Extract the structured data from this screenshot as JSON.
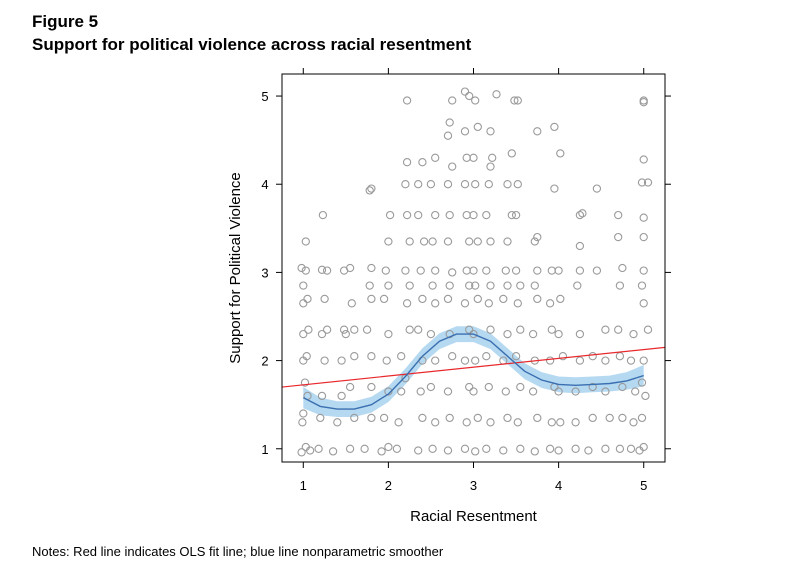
{
  "figure": {
    "number": "Figure 5",
    "title": "Support for political violence across racial resentment",
    "notes": "Notes: Red line indicates OLS fit line; blue line nonparametric smoother"
  },
  "chart_data": {
    "type": "scatter",
    "xlabel": "Racial Resentment",
    "ylabel": "Support for Political Violence",
    "xlim": [
      0.75,
      5.25
    ],
    "ylim": [
      0.85,
      5.25
    ],
    "x_ticks": [
      1,
      2,
      3,
      4,
      5
    ],
    "y_ticks": [
      1,
      2,
      3,
      4,
      5
    ],
    "x_tick_labels": [
      "1",
      "2",
      "3",
      "4",
      "5"
    ],
    "y_tick_labels": [
      "1",
      "2",
      "3",
      "4",
      "5"
    ],
    "grid": false,
    "legend": "none",
    "colors": {
      "points": "#9a9a9a",
      "ols_line": "#e8282c",
      "smoother_line": "#3a6fb0",
      "smoother_band": "#a9d2f0"
    },
    "series": [
      {
        "kind": "jittered_points",
        "points": [
          [
            0.98,
            0.96
          ],
          [
            1.03,
            1.02
          ],
          [
            1.08,
            0.98
          ],
          [
            0.99,
            1.3
          ],
          [
            1.0,
            1.4
          ],
          [
            1.05,
            1.6
          ],
          [
            1.02,
            1.75
          ],
          [
            1.0,
            2.0
          ],
          [
            1.04,
            2.05
          ],
          [
            1.0,
            2.3
          ],
          [
            1.06,
            2.35
          ],
          [
            1.0,
            2.65
          ],
          [
            1.05,
            2.7
          ],
          [
            1.0,
            2.85
          ],
          [
            1.03,
            3.02
          ],
          [
            0.98,
            3.05
          ],
          [
            1.03,
            3.35
          ],
          [
            1.18,
            1.0
          ],
          [
            1.2,
            1.35
          ],
          [
            1.22,
            1.6
          ],
          [
            1.25,
            2.0
          ],
          [
            1.22,
            2.3
          ],
          [
            1.28,
            2.35
          ],
          [
            1.25,
            2.7
          ],
          [
            1.22,
            3.03
          ],
          [
            1.28,
            3.02
          ],
          [
            1.23,
            3.65
          ],
          [
            1.35,
            0.97
          ],
          [
            1.4,
            1.3
          ],
          [
            1.45,
            1.6
          ],
          [
            1.45,
            2.0
          ],
          [
            1.5,
            2.3
          ],
          [
            1.48,
            2.35
          ],
          [
            1.48,
            3.02
          ],
          [
            1.55,
            1.0
          ],
          [
            1.6,
            1.35
          ],
          [
            1.55,
            1.7
          ],
          [
            1.6,
            2.05
          ],
          [
            1.6,
            2.35
          ],
          [
            1.57,
            2.65
          ],
          [
            1.55,
            3.05
          ],
          [
            1.72,
            1.0
          ],
          [
            1.8,
            1.35
          ],
          [
            1.8,
            1.7
          ],
          [
            1.8,
            2.05
          ],
          [
            1.75,
            2.35
          ],
          [
            1.8,
            2.7
          ],
          [
            1.78,
            2.85
          ],
          [
            1.8,
            3.05
          ],
          [
            1.8,
            3.95
          ],
          [
            1.78,
            3.93
          ],
          [
            1.92,
            0.97
          ],
          [
            2.0,
            1.02
          ],
          [
            1.95,
            1.35
          ],
          [
            2.0,
            1.65
          ],
          [
            1.98,
            2.0
          ],
          [
            2.0,
            2.3
          ],
          [
            1.95,
            2.7
          ],
          [
            2.0,
            2.85
          ],
          [
            1.97,
            3.02
          ],
          [
            2.0,
            3.35
          ],
          [
            2.02,
            3.65
          ],
          [
            2.1,
            1.0
          ],
          [
            2.12,
            1.3
          ],
          [
            2.15,
            1.65
          ],
          [
            2.2,
            1.8
          ],
          [
            2.15,
            2.05
          ],
          [
            2.25,
            2.35
          ],
          [
            2.22,
            2.65
          ],
          [
            2.25,
            2.85
          ],
          [
            2.2,
            3.02
          ],
          [
            2.25,
            3.35
          ],
          [
            2.22,
            3.65
          ],
          [
            2.2,
            4.0
          ],
          [
            2.22,
            4.25
          ],
          [
            2.22,
            4.95
          ],
          [
            2.35,
            0.98
          ],
          [
            2.4,
            1.35
          ],
          [
            2.38,
            1.65
          ],
          [
            2.4,
            2.0
          ],
          [
            2.35,
            2.35
          ],
          [
            2.4,
            2.7
          ],
          [
            2.38,
            3.02
          ],
          [
            2.42,
            3.35
          ],
          [
            2.35,
            3.65
          ],
          [
            2.35,
            4.0
          ],
          [
            2.4,
            4.25
          ],
          [
            2.52,
            1.0
          ],
          [
            2.55,
            1.3
          ],
          [
            2.5,
            1.7
          ],
          [
            2.55,
            2.0
          ],
          [
            2.5,
            2.3
          ],
          [
            2.55,
            2.65
          ],
          [
            2.52,
            2.85
          ],
          [
            2.55,
            3.02
          ],
          [
            2.52,
            3.35
          ],
          [
            2.55,
            3.65
          ],
          [
            2.5,
            4.0
          ],
          [
            2.55,
            4.3
          ],
          [
            2.7,
            0.98
          ],
          [
            2.72,
            1.35
          ],
          [
            2.7,
            1.65
          ],
          [
            2.75,
            2.05
          ],
          [
            2.72,
            2.3
          ],
          [
            2.7,
            2.7
          ],
          [
            2.72,
            2.85
          ],
          [
            2.75,
            3.0
          ],
          [
            2.7,
            3.35
          ],
          [
            2.72,
            3.65
          ],
          [
            2.7,
            4.0
          ],
          [
            2.75,
            4.2
          ],
          [
            2.7,
            4.55
          ],
          [
            2.75,
            4.95
          ],
          [
            2.72,
            4.7
          ],
          [
            2.9,
            1.0
          ],
          [
            2.92,
            1.3
          ],
          [
            2.95,
            1.7
          ],
          [
            2.9,
            2.0
          ],
          [
            2.95,
            2.35
          ],
          [
            2.9,
            2.65
          ],
          [
            2.95,
            2.85
          ],
          [
            2.92,
            3.02
          ],
          [
            2.95,
            3.35
          ],
          [
            2.92,
            3.65
          ],
          [
            2.9,
            4.0
          ],
          [
            2.92,
            4.3
          ],
          [
            2.9,
            4.6
          ],
          [
            2.95,
            5.0
          ],
          [
            2.9,
            5.05
          ],
          [
            3.02,
            0.97
          ],
          [
            3.05,
            1.35
          ],
          [
            3.0,
            1.65
          ],
          [
            3.02,
            2.0
          ],
          [
            3.0,
            2.3
          ],
          [
            3.05,
            2.7
          ],
          [
            3.02,
            2.85
          ],
          [
            3.0,
            3.02
          ],
          [
            3.05,
            3.35
          ],
          [
            3.0,
            3.65
          ],
          [
            3.02,
            4.0
          ],
          [
            3.0,
            4.3
          ],
          [
            3.05,
            4.65
          ],
          [
            3.02,
            4.95
          ],
          [
            3.15,
            1.0
          ],
          [
            3.2,
            1.3
          ],
          [
            3.18,
            1.7
          ],
          [
            3.15,
            2.05
          ],
          [
            3.2,
            2.35
          ],
          [
            3.18,
            2.65
          ],
          [
            3.2,
            2.85
          ],
          [
            3.15,
            3.02
          ],
          [
            3.2,
            3.35
          ],
          [
            3.15,
            3.65
          ],
          [
            3.18,
            4.0
          ],
          [
            3.2,
            4.2
          ],
          [
            3.22,
            4.3
          ],
          [
            3.2,
            4.6
          ],
          [
            3.27,
            5.02
          ],
          [
            3.35,
            0.98
          ],
          [
            3.4,
            1.35
          ],
          [
            3.38,
            1.65
          ],
          [
            3.35,
            2.0
          ],
          [
            3.4,
            2.3
          ],
          [
            3.35,
            2.7
          ],
          [
            3.4,
            2.85
          ],
          [
            3.38,
            3.02
          ],
          [
            3.4,
            3.35
          ],
          [
            3.45,
            3.65
          ],
          [
            3.4,
            4.0
          ],
          [
            3.45,
            4.35
          ],
          [
            3.48,
            4.95
          ],
          [
            3.55,
            1.0
          ],
          [
            3.52,
            1.3
          ],
          [
            3.55,
            1.7
          ],
          [
            3.5,
            2.05
          ],
          [
            3.55,
            2.35
          ],
          [
            3.52,
            2.65
          ],
          [
            3.55,
            2.85
          ],
          [
            3.5,
            3.02
          ],
          [
            3.5,
            3.65
          ],
          [
            3.52,
            4.95
          ],
          [
            3.52,
            4.0
          ],
          [
            3.72,
            0.97
          ],
          [
            3.75,
            1.35
          ],
          [
            3.7,
            1.65
          ],
          [
            3.72,
            2.0
          ],
          [
            3.7,
            2.3
          ],
          [
            3.75,
            2.7
          ],
          [
            3.72,
            2.85
          ],
          [
            3.75,
            3.02
          ],
          [
            3.72,
            3.35
          ],
          [
            3.75,
            3.4
          ],
          [
            3.75,
            4.6
          ],
          [
            3.9,
            1.0
          ],
          [
            3.92,
            1.3
          ],
          [
            3.95,
            1.7
          ],
          [
            3.9,
            2.0
          ],
          [
            3.92,
            2.35
          ],
          [
            3.9,
            2.65
          ],
          [
            3.92,
            3.02
          ],
          [
            3.95,
            3.95
          ],
          [
            3.95,
            4.65
          ],
          [
            4.0,
            0.98
          ],
          [
            4.02,
            1.3
          ],
          [
            4.0,
            1.65
          ],
          [
            4.05,
            2.05
          ],
          [
            4.0,
            2.3
          ],
          [
            4.02,
            2.7
          ],
          [
            4.0,
            3.02
          ],
          [
            4.02,
            4.35
          ],
          [
            4.2,
            1.0
          ],
          [
            4.2,
            1.3
          ],
          [
            4.2,
            1.65
          ],
          [
            4.25,
            2.0
          ],
          [
            4.25,
            2.3
          ],
          [
            4.22,
            2.85
          ],
          [
            4.25,
            3.02
          ],
          [
            4.25,
            3.3
          ],
          [
            4.25,
            3.65
          ],
          [
            4.28,
            3.67
          ],
          [
            4.35,
            0.98
          ],
          [
            4.4,
            1.35
          ],
          [
            4.4,
            1.7
          ],
          [
            4.4,
            2.05
          ],
          [
            4.45,
            3.02
          ],
          [
            4.55,
            1.0
          ],
          [
            4.6,
            1.35
          ],
          [
            4.55,
            1.65
          ],
          [
            4.55,
            2.0
          ],
          [
            4.45,
            3.95
          ],
          [
            4.55,
            2.35
          ],
          [
            4.72,
            1.0
          ],
          [
            4.75,
            1.35
          ],
          [
            4.75,
            1.7
          ],
          [
            4.72,
            2.05
          ],
          [
            4.7,
            2.35
          ],
          [
            4.72,
            2.85
          ],
          [
            4.75,
            3.05
          ],
          [
            4.7,
            3.4
          ],
          [
            4.7,
            3.65
          ],
          [
            4.85,
            1.0
          ],
          [
            4.88,
            1.3
          ],
          [
            4.9,
            1.65
          ],
          [
            4.85,
            2.0
          ],
          [
            4.88,
            2.3
          ],
          [
            4.95,
            0.98
          ],
          [
            5.0,
            1.02
          ],
          [
            4.98,
            1.35
          ],
          [
            5.02,
            1.6
          ],
          [
            4.98,
            1.75
          ],
          [
            5.0,
            2.0
          ],
          [
            5.05,
            2.35
          ],
          [
            5.0,
            2.65
          ],
          [
            4.98,
            2.85
          ],
          [
            5.0,
            3.02
          ],
          [
            5.0,
            3.4
          ],
          [
            5.0,
            3.62
          ],
          [
            4.98,
            4.02
          ],
          [
            5.05,
            4.02
          ],
          [
            5.0,
            4.28
          ],
          [
            5.0,
            4.95
          ],
          [
            5.0,
            4.93
          ]
        ]
      },
      {
        "kind": "ols_line",
        "x": [
          0.75,
          5.25
        ],
        "y": [
          1.7,
          2.15
        ]
      },
      {
        "kind": "smoother",
        "x": [
          1.0,
          1.2,
          1.4,
          1.6,
          1.8,
          2.0,
          2.2,
          2.4,
          2.6,
          2.8,
          3.0,
          3.2,
          3.4,
          3.6,
          3.8,
          4.0,
          4.2,
          4.4,
          4.6,
          4.8,
          5.0
        ],
        "y": [
          1.58,
          1.48,
          1.45,
          1.45,
          1.5,
          1.62,
          1.82,
          2.05,
          2.22,
          2.3,
          2.3,
          2.22,
          2.05,
          1.88,
          1.78,
          1.73,
          1.72,
          1.73,
          1.74,
          1.77,
          1.83
        ],
        "band_halfwidth": [
          0.12,
          0.1,
          0.09,
          0.09,
          0.09,
          0.09,
          0.09,
          0.09,
          0.09,
          0.09,
          0.09,
          0.09,
          0.09,
          0.09,
          0.09,
          0.09,
          0.09,
          0.09,
          0.09,
          0.1,
          0.12
        ]
      }
    ]
  }
}
